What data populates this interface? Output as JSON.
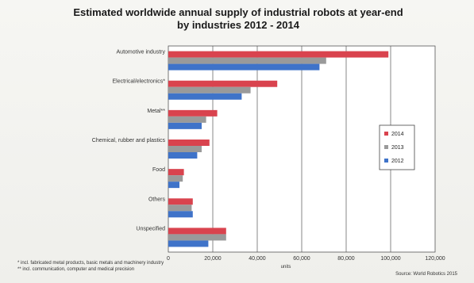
{
  "chart_data": {
    "type": "bar",
    "orientation": "horizontal",
    "title": "Estimated worldwide annual supply of industrial robots at year-end by industries 2012 - 2014",
    "title_lines": [
      "Estimated worldwide annual supply of industrial robots at year-end",
      "by industries 2012 - 2014"
    ],
    "categories": [
      "Automotive industry",
      "Electrical/electronics*",
      "Metal**",
      "Chemical, rubber and plastics",
      "Food",
      "Others",
      "Unspecified"
    ],
    "series": [
      {
        "name": "2014",
        "color": "#d9434e",
        "values": [
          99000,
          49000,
          22000,
          18500,
          7000,
          11000,
          26000
        ]
      },
      {
        "name": "2013",
        "color": "#9a9a9a",
        "values": [
          71000,
          37000,
          17000,
          15000,
          6500,
          10500,
          26000
        ]
      },
      {
        "name": "2012",
        "color": "#3f73c9",
        "values": [
          68000,
          33000,
          15000,
          13000,
          5000,
          11000,
          18000
        ]
      }
    ],
    "xlim": [
      0,
      120000
    ],
    "x_ticks": [
      "0",
      "20,000",
      "40,000",
      "60,000",
      "80,000",
      "100,000",
      "120,000"
    ],
    "xlabel": "units",
    "ylabel": "",
    "grid": true,
    "legend_position": "right",
    "footnotes": [
      "* incl. fabricated metal products, basic metals and machinery industry",
      "** incl. communication, computer and medical precision"
    ],
    "source": "Source: World Robotics 2015"
  }
}
